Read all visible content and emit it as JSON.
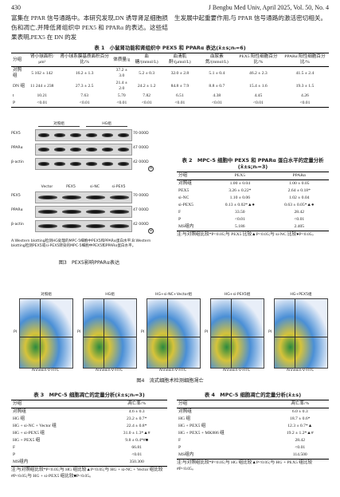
{
  "header": {
    "page": "430",
    "journal": "J Bengbu Med Univ, April 2025, Vol. 50, No. 4"
  },
  "body_text": {
    "left": "富集在 PPAR 信号通路中。本研究发现,DN 诱导肾足细胞损伤和凋亡,并降低肾组织中 PEX5 和 PPARα 的表达。这些结果表明,PEX5 在 DN 的发",
    "right": "生发展中起重要作用,与 PPAR 信号通路的激活密切相关。"
  },
  "table1": {
    "title": "表 1　小鼠肾功能和肾组织中 PEX5 和 PPARα 表达(x̄±s;nᵢ=6)",
    "headers": [
      "分组",
      "肾小球面积/μm²",
      "肾小球系膜基质面积百分比/%",
      "体质量/g",
      "血糖/(mmol/L)",
      "血清肌酐/(μmol/L)",
      "血尿素氮/(mmol/L)",
      "PEX5 阳性细胞百分比/%",
      "PPARα 阳性细胞百分比/%"
    ],
    "rows": [
      [
        "对照组",
        "5 102 ± 142",
        "16.2 ± 1.3",
        "37.2 ± 3.0",
        "5.2 ± 0.3",
        "32.0 ± 2.8",
        "5.1 ± 0.4",
        "46.2 ± 2.3",
        "41.5 ± 2.4"
      ],
      [
        "DN 组",
        "11 244 ± 238",
        "27.3 ± 2.5",
        "21.4 ± 2.0",
        "24.2 ± 1.2",
        "84.8 ± 7.9",
        "8.8 ± 0.7",
        "15.4 ± 1.6",
        "19.3 ± 1.5"
      ],
      [
        "t",
        "10.21",
        "7.63",
        "5.70",
        "7.82",
        "6.51",
        "4.38",
        "4.45",
        "4.26"
      ],
      [
        "P",
        "<0.01",
        "<0.01",
        "<0.01",
        "<0.01",
        "<0.01",
        "<0.01",
        "<0.01",
        "<0.01"
      ]
    ]
  },
  "figure3": {
    "panel_a": {
      "groups": [
        "对照组",
        "HG组"
      ],
      "bands": [
        "PEX5",
        "PPARα",
        "β-actin"
      ],
      "sizes": [
        "70 000D",
        "47 000D",
        "42 000D"
      ],
      "label": "A"
    },
    "panel_b": {
      "lanes": [
        "Vector",
        "PEX5",
        "si-NC",
        "si-PEX5"
      ],
      "bands": [
        "PEX5",
        "PPARα",
        "β-actin"
      ],
      "sizes": [
        "70 000D",
        "47 000D",
        "42 000D"
      ],
      "label": "B"
    },
    "legend": "A:Western blotting检测HG处理的MPC-5细胞中PEX5和PPARα蛋白水平;B:Western blotting检测PEX5或si-PEX5转染的MPC-5细胞中PEX5和PPARα蛋白水平。",
    "caption": "图3　PEX5影响PPARα表达"
  },
  "table2": {
    "title": "表 2　MPC-5 细胞中 PEX5 和 PPARα 蛋白水平的定量分析(x̄±s;nᵢ=3)",
    "headers": [
      "分组",
      "PEX5",
      "PPARα"
    ],
    "rows": [
      [
        "对照组",
        "1.00 ± 0.04",
        "1.00 ± 0.05"
      ],
      [
        "PEX5",
        "3.26 ± 0.22*",
        "2.64 ± 0.18*"
      ],
      [
        "si-NC",
        "1.10 ± 0.06",
        "1.02 ± 0.04"
      ],
      [
        "si-PEX5",
        "0.13 ± 0.02*▲●",
        "0.63 ± 0.05*▲●"
      ],
      [
        "F",
        "33.50",
        "28.42"
      ],
      [
        "P",
        "<0.01",
        "<0.01"
      ],
      [
        "MS组内",
        "5.186",
        "2.405"
      ]
    ],
    "note": "注:与对照组比较*P<0.05;与 PEX5 比较▲P<0.05;与 si-NC 比较●P<0.05。"
  },
  "figure4": {
    "panels": [
      "对照组",
      "HG组",
      "HG+si-NC+Vector组",
      "HG+si-PEX5组",
      "HG+PEX5组"
    ],
    "x_label": "Annexin-V-FITC",
    "y_label": "PI",
    "caption": "图4　流式细胞术检测细胞凋亡"
  },
  "table3": {
    "title": "表 3　MPC-5 细胞凋亡的定量分析(x̄±s;nᵢ=3)",
    "headers": [
      "分组",
      "凋亡率/%"
    ],
    "rows": [
      [
        "对照组",
        "4.6 ± 0.3"
      ],
      [
        "HG 组",
        "23.2 ± 0.7*"
      ],
      [
        "HG + si-NC + Vector 组",
        "22.4 ± 0.8*"
      ],
      [
        "HG + si-PEX5 组",
        "31.0 ± 1.3*▲#"
      ],
      [
        "HG + PEX5 组",
        "9.8 ± 0.4*#■"
      ],
      [
        "F",
        "66.81"
      ],
      [
        "P",
        "<0.01"
      ],
      [
        "MS组内",
        "350.300"
      ]
    ],
    "note": "注:与对照组比较*P<0.05;与 HG 组比较▲P<0.05;与 HG + si-NC + Vector 组比较#P<0.05;与 HG + si-PEX5 组比较■P<0.05。"
  },
  "table4": {
    "title": "表 4　MPC-5 细胞凋亡的定量分析(x̄±s)",
    "headers": [
      "分组",
      "凋亡率/%"
    ],
    "rows": [
      [
        "对照组",
        "6.0 ± 0.3"
      ],
      [
        "HG 组",
        "18.7 ± 0.6*"
      ],
      [
        "HG + PEX5 组",
        "12.3 ± 0.7*▲"
      ],
      [
        "HG + PEX5 + MK886 组",
        "19.2 ± 1.2*▲#"
      ],
      [
        "F",
        "28.42"
      ],
      [
        "P",
        "<0.01"
      ],
      [
        "MS组内",
        "114.500"
      ]
    ],
    "note": "注:与对照组比较*P<0.05;与 HG 组比较▲P<0.05;与 HG + PEX5 组比较#P<0.05。"
  }
}
